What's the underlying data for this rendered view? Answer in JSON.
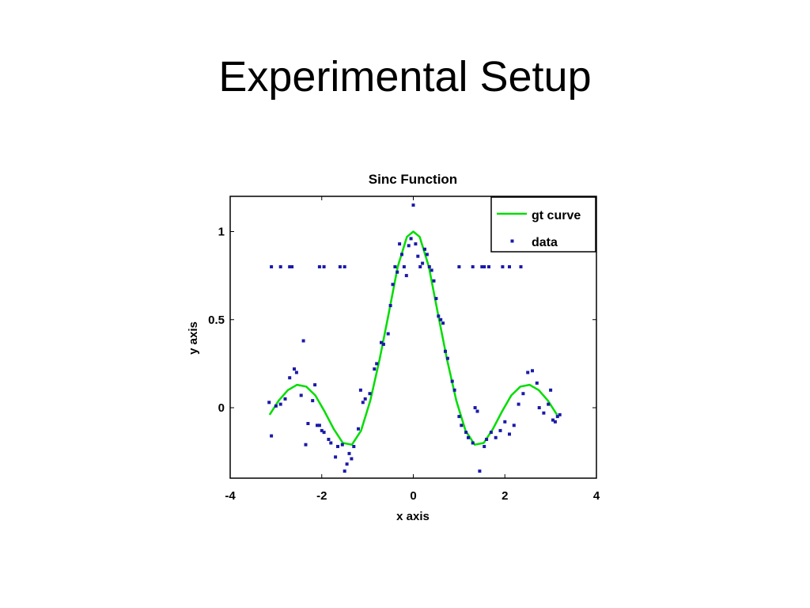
{
  "slide": {
    "title": "Experimental Setup"
  },
  "chart_data": {
    "type": "line",
    "title": "Sinc Function",
    "xlabel": "x axis",
    "ylabel": "y axis",
    "xlim": [
      -4,
      4
    ],
    "ylim": [
      -0.4,
      1.2
    ],
    "xticks": [
      -4,
      -2,
      0,
      2,
      4
    ],
    "yticks": [
      0,
      0.5,
      1
    ],
    "xtick_labels": [
      "-4",
      "-2",
      "0",
      "2",
      "4"
    ],
    "ytick_labels": [
      "0",
      "0.5",
      "1"
    ],
    "grid": false,
    "legend_position": "top-right",
    "series": [
      {
        "name": "gt curve",
        "kind": "line",
        "color": "#00dd00",
        "x": [
          -3.14,
          -2.94,
          -2.74,
          -2.54,
          -2.34,
          -2.14,
          -1.94,
          -1.74,
          -1.54,
          -1.34,
          -1.14,
          -0.94,
          -0.74,
          -0.54,
          -0.34,
          -0.14,
          0.0,
          0.14,
          0.34,
          0.54,
          0.74,
          0.94,
          1.14,
          1.34,
          1.54,
          1.74,
          1.94,
          2.14,
          2.34,
          2.54,
          2.74,
          2.94,
          3.14
        ],
        "y": [
          -0.04,
          0.04,
          0.1,
          0.13,
          0.12,
          0.07,
          -0.02,
          -0.12,
          -0.2,
          -0.21,
          -0.13,
          0.04,
          0.27,
          0.53,
          0.8,
          0.97,
          1.0,
          0.97,
          0.8,
          0.53,
          0.27,
          0.04,
          -0.13,
          -0.21,
          -0.2,
          -0.12,
          -0.02,
          0.07,
          0.12,
          0.13,
          0.1,
          0.04,
          -0.04
        ]
      },
      {
        "name": "data",
        "kind": "scatter",
        "color": "#1a1aa8",
        "points": [
          [
            -3.1,
            0.8
          ],
          [
            -2.9,
            0.8
          ],
          [
            -2.7,
            0.8
          ],
          [
            -2.65,
            0.8
          ],
          [
            -2.05,
            0.8
          ],
          [
            -1.95,
            0.8
          ],
          [
            -1.6,
            0.8
          ],
          [
            -1.5,
            0.8
          ],
          [
            1.0,
            0.8
          ],
          [
            1.3,
            0.8
          ],
          [
            1.5,
            0.8
          ],
          [
            1.55,
            0.8
          ],
          [
            1.65,
            0.8
          ],
          [
            1.95,
            0.8
          ],
          [
            2.1,
            0.8
          ],
          [
            2.35,
            0.8
          ],
          [
            -3.15,
            0.03
          ],
          [
            -3.1,
            -0.16
          ],
          [
            -3.0,
            0.01
          ],
          [
            -2.9,
            0.02
          ],
          [
            -2.8,
            0.05
          ],
          [
            -2.7,
            0.17
          ],
          [
            -2.6,
            0.22
          ],
          [
            -2.55,
            0.2
          ],
          [
            -2.45,
            0.07
          ],
          [
            -2.4,
            0.38
          ],
          [
            -2.35,
            -0.21
          ],
          [
            -2.3,
            -0.09
          ],
          [
            -2.2,
            0.04
          ],
          [
            -2.15,
            0.13
          ],
          [
            -2.1,
            -0.1
          ],
          [
            -2.05,
            -0.1
          ],
          [
            -2.0,
            -0.13
          ],
          [
            -1.95,
            -0.14
          ],
          [
            -1.85,
            -0.18
          ],
          [
            -1.8,
            -0.2
          ],
          [
            -1.7,
            -0.28
          ],
          [
            -1.65,
            -0.22
          ],
          [
            -1.55,
            -0.21
          ],
          [
            -1.5,
            -0.36
          ],
          [
            -1.45,
            -0.32
          ],
          [
            -1.4,
            -0.26
          ],
          [
            -1.35,
            -0.29
          ],
          [
            -1.3,
            -0.22
          ],
          [
            -1.2,
            -0.12
          ],
          [
            -1.15,
            0.1
          ],
          [
            -1.1,
            0.03
          ],
          [
            -1.05,
            0.05
          ],
          [
            -0.95,
            0.08
          ],
          [
            -0.85,
            0.22
          ],
          [
            -0.8,
            0.25
          ],
          [
            -0.7,
            0.37
          ],
          [
            -0.65,
            0.36
          ],
          [
            -0.55,
            0.42
          ],
          [
            -0.5,
            0.58
          ],
          [
            -0.45,
            0.7
          ],
          [
            -0.4,
            0.8
          ],
          [
            -0.35,
            0.77
          ],
          [
            -0.3,
            0.93
          ],
          [
            -0.25,
            0.87
          ],
          [
            -0.2,
            0.8
          ],
          [
            -0.15,
            0.75
          ],
          [
            -0.1,
            0.92
          ],
          [
            -0.05,
            0.96
          ],
          [
            0.0,
            1.15
          ],
          [
            0.05,
            0.93
          ],
          [
            0.1,
            0.86
          ],
          [
            0.15,
            0.8
          ],
          [
            0.2,
            0.82
          ],
          [
            0.25,
            0.9
          ],
          [
            0.3,
            0.87
          ],
          [
            0.35,
            0.8
          ],
          [
            0.4,
            0.78
          ],
          [
            0.45,
            0.72
          ],
          [
            0.5,
            0.62
          ],
          [
            0.55,
            0.52
          ],
          [
            0.6,
            0.5
          ],
          [
            0.65,
            0.48
          ],
          [
            0.7,
            0.32
          ],
          [
            0.75,
            0.28
          ],
          [
            0.85,
            0.15
          ],
          [
            0.9,
            0.1
          ],
          [
            1.0,
            -0.05
          ],
          [
            1.05,
            -0.1
          ],
          [
            1.15,
            -0.14
          ],
          [
            1.2,
            -0.17
          ],
          [
            1.3,
            -0.2
          ],
          [
            1.35,
            0.0
          ],
          [
            1.4,
            -0.02
          ],
          [
            1.45,
            -0.36
          ],
          [
            1.55,
            -0.22
          ],
          [
            1.6,
            -0.18
          ],
          [
            1.7,
            -0.14
          ],
          [
            1.8,
            -0.17
          ],
          [
            1.9,
            -0.13
          ],
          [
            2.0,
            -0.08
          ],
          [
            2.1,
            -0.15
          ],
          [
            2.2,
            -0.1
          ],
          [
            2.3,
            0.02
          ],
          [
            2.4,
            0.08
          ],
          [
            2.5,
            0.2
          ],
          [
            2.6,
            0.21
          ],
          [
            2.7,
            0.14
          ],
          [
            2.75,
            0.0
          ],
          [
            2.85,
            -0.03
          ],
          [
            2.95,
            0.02
          ],
          [
            3.0,
            0.1
          ],
          [
            3.05,
            -0.07
          ],
          [
            3.1,
            -0.08
          ],
          [
            3.15,
            -0.05
          ],
          [
            3.2,
            -0.04
          ]
        ]
      }
    ]
  }
}
